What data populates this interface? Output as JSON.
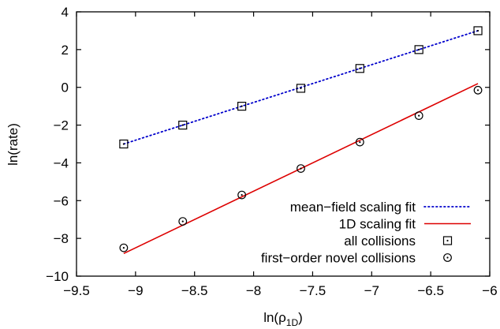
{
  "chart_data": {
    "type": "scatter",
    "title": "",
    "xlabel": "ln(ρ",
    "xlabel_sub": "1D",
    "xlabel_close": ")",
    "ylabel": "ln(rate)",
    "xlim": [
      -9.5,
      -6
    ],
    "ylim": [
      -10,
      4
    ],
    "x_ticks": [
      -9.5,
      -9,
      -8.5,
      -8,
      -7.5,
      -7,
      -6.5,
      -6
    ],
    "y_ticks": [
      -10,
      -8,
      -6,
      -4,
      -2,
      0,
      2,
      4
    ],
    "x_tick_labels": [
      "−9.5",
      "−9",
      "−8.5",
      "−8",
      "−7.5",
      "−7",
      "−6.5",
      "−6"
    ],
    "y_tick_labels": [
      "−10",
      "−8",
      "−6",
      "−4",
      "−2",
      "0",
      "2",
      "4"
    ],
    "grid": false,
    "legend_position": "bottom-right",
    "series": [
      {
        "name": "mean−field scaling fit",
        "kind": "line",
        "style": "dotted",
        "color": "#0000cc",
        "x": [
          -9.1,
          -6.1
        ],
        "y": [
          -3.0,
          3.0
        ]
      },
      {
        "name": "1D scaling fit",
        "kind": "line",
        "style": "solid",
        "color": "#dd0000",
        "x": [
          -9.1,
          -6.1
        ],
        "y": [
          -8.8,
          0.2
        ]
      },
      {
        "name": "all collisions",
        "kind": "points",
        "marker": "square-dot",
        "color": "#000000",
        "x": [
          -9.1,
          -8.6,
          -8.1,
          -7.6,
          -7.1,
          -6.6,
          -6.1
        ],
        "y": [
          -3.0,
          -2.0,
          -1.0,
          -0.05,
          1.0,
          2.0,
          3.0
        ]
      },
      {
        "name": "first−order novel collisions",
        "kind": "points",
        "marker": "circle-dot",
        "color": "#000000",
        "x": [
          -9.1,
          -8.6,
          -8.1,
          -7.6,
          -7.1,
          -6.6,
          -6.1
        ],
        "y": [
          -8.5,
          -7.1,
          -5.7,
          -4.3,
          -2.9,
          -1.5,
          -0.15
        ]
      }
    ]
  }
}
